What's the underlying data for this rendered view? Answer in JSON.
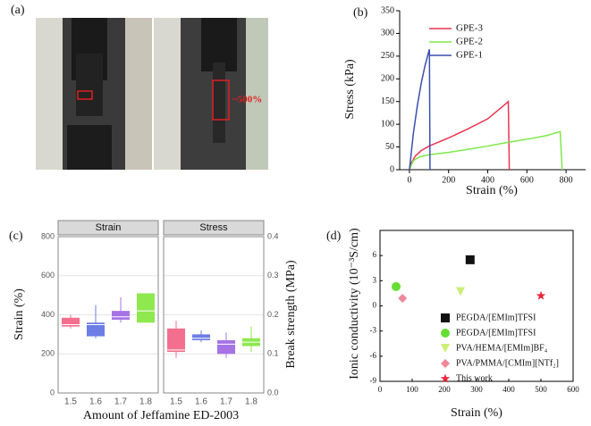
{
  "figure_a": {
    "panel": "(a)",
    "annotation": "~500%"
  },
  "chart_data": [
    {
      "type": "line",
      "panel": "(b)",
      "x_label": "Strain (%)",
      "y_label": "Stress (kPa)",
      "xlim": [
        -50,
        900
      ],
      "xticks": [
        0,
        200,
        400,
        600,
        800
      ],
      "ylim": [
        0,
        350
      ],
      "yticks": [
        0,
        50,
        100,
        150,
        200,
        250,
        300,
        350
      ],
      "series": [
        {
          "name": "GPE-3",
          "color": "#e8364f",
          "x": [
            0,
            10,
            30,
            60,
            100,
            200,
            300,
            400,
            500,
            505,
            510
          ],
          "values": [
            0,
            15,
            30,
            42,
            52,
            70,
            90,
            112,
            148,
            150,
            0
          ]
        },
        {
          "name": "GPE-2",
          "color": "#7ee84a",
          "x": [
            0,
            20,
            50,
            100,
            200,
            300,
            400,
            500,
            600,
            700,
            770,
            780
          ],
          "values": [
            0,
            20,
            28,
            33,
            38,
            45,
            52,
            60,
            67,
            75,
            84,
            0
          ]
        },
        {
          "name": "GPE-1",
          "color": "#3a4fb0",
          "x": [
            0,
            20,
            40,
            60,
            80,
            100,
            102,
            105
          ],
          "values": [
            0,
            80,
            140,
            190,
            230,
            262,
            265,
            0
          ]
        }
      ]
    },
    {
      "type": "box",
      "panel": "(c)",
      "x_label": "Amount of Jeffamine ED-2003",
      "y_label": "Strain (%)",
      "y2_label": "Break strength (MPa)",
      "categories": [
        "1.5",
        "1.6",
        "1.7",
        "1.8"
      ],
      "colors": [
        "#f46e8e",
        "#6c7de6",
        "#a673e6",
        "#8ee84e"
      ],
      "ylim": [
        0,
        800
      ],
      "yticks": [
        0,
        200,
        400,
        600,
        800
      ],
      "y2lim": [
        0,
        0.4
      ],
      "y2ticks": [
        {
          "value": 0,
          "label": "0.0"
        },
        0.1,
        0.2,
        0.3,
        0.4
      ],
      "facets": [
        {
          "name": "Strain",
          "axis": "y",
          "boxes": [
            {
              "min": 330,
              "q1": 340,
              "median": 350,
              "q3": 385,
              "max": 400
            },
            {
              "min": 280,
              "q1": 290,
              "median": 350,
              "q3": 360,
              "max": 450
            },
            {
              "min": 360,
              "q1": 375,
              "median": 390,
              "q3": 420,
              "max": 490
            },
            {
              "min": 360,
              "q1": 360,
              "median": 420,
              "q3": 510,
              "max": 510
            }
          ]
        },
        {
          "name": "Stress",
          "axis": "y2",
          "boxes": [
            {
              "min": 0.09,
              "q1": 0.105,
              "median": 0.11,
              "q3": 0.165,
              "max": 0.185
            },
            {
              "min": 0.13,
              "q1": 0.135,
              "median": 0.14,
              "q3": 0.15,
              "max": 0.16
            },
            {
              "min": 0.09,
              "q1": 0.1,
              "median": 0.125,
              "q3": 0.135,
              "max": 0.155
            },
            {
              "min": 0.105,
              "q1": 0.12,
              "median": 0.13,
              "q3": 0.14,
              "max": 0.17
            }
          ]
        }
      ]
    },
    {
      "type": "scatter",
      "panel": "(d)",
      "x_label": "Strain (%)",
      "y_label": "Ionic conductivity (10⁻³S/cm)",
      "xlim": [
        0,
        600
      ],
      "xticks": [
        0,
        100,
        200,
        300,
        400,
        500,
        600
      ],
      "ylim": [
        -9,
        9
      ],
      "yticks": [
        -9,
        -6,
        -3,
        0,
        3,
        6
      ],
      "series": [
        {
          "name": "PEGDA/[EMIm]TFSI",
          "color": "#111111",
          "marker": "square",
          "x": [
            280
          ],
          "values": [
            5.5
          ]
        },
        {
          "name": "PEGDA/[EMIm]TFSI",
          "color": "#66dd33",
          "marker": "circle",
          "x": [
            50
          ],
          "values": [
            2.3
          ]
        },
        {
          "name": "PVA/HEMA/[EMIm]BF₄",
          "color": "#ccee77",
          "marker": "triangle",
          "x": [
            250
          ],
          "values": [
            1.7
          ]
        },
        {
          "name": "PVA/PMMA/[CMIm][NTf₂]",
          "color": "#ee8899",
          "marker": "diamond",
          "x": [
            70
          ],
          "values": [
            0.9
          ]
        },
        {
          "name": "This work",
          "color": "#e8283c",
          "marker": "star",
          "x": [
            500
          ],
          "values": [
            1.2
          ]
        }
      ]
    }
  ]
}
